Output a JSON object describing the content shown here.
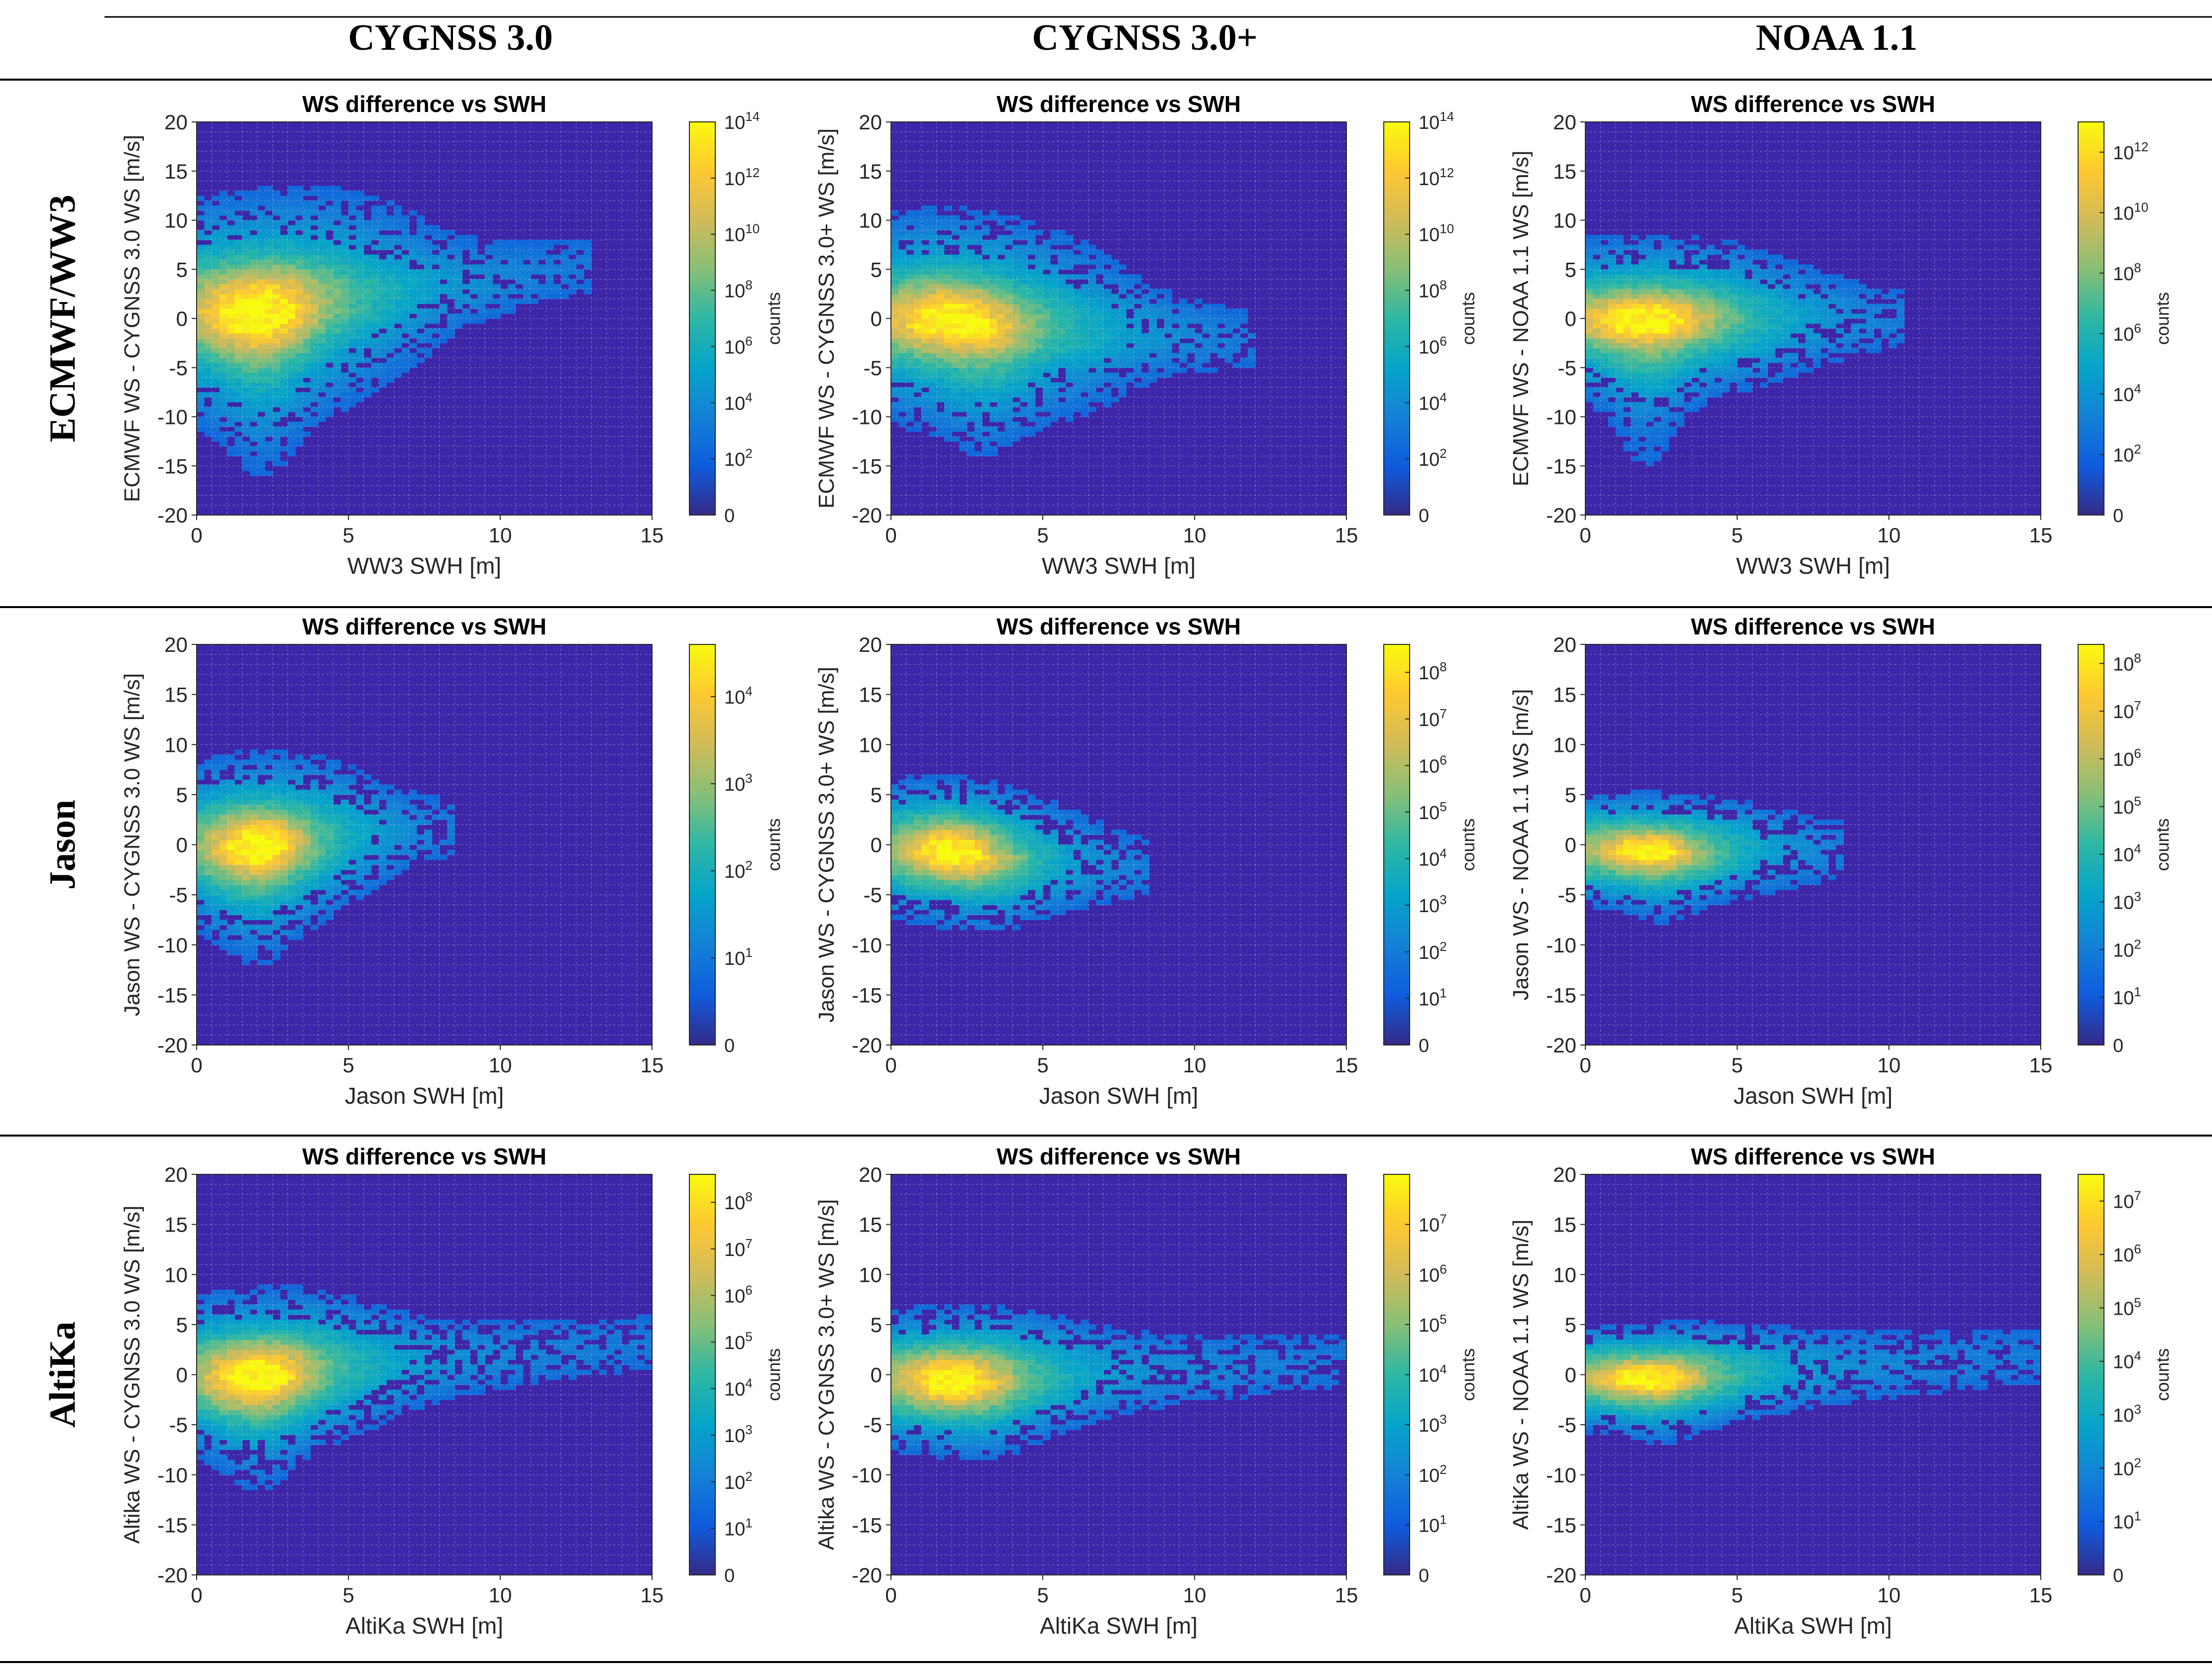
{
  "column_headers": [
    "CYGNSS 3.0",
    "CYGNSS 3.0+",
    "NOAA 1.1"
  ],
  "row_headers": [
    "ECMWF/WW3",
    "Jason",
    "AltiKa"
  ],
  "colors": {
    "rule": "#000000",
    "axes_bg": "#3e26a8",
    "grid": "#d0d0e8",
    "parula": [
      "#352a87",
      "#0f5cdd",
      "#1481d6",
      "#06a4ca",
      "#2eb7a4",
      "#87bf77",
      "#d1bb59",
      "#fec832",
      "#f9fb0e"
    ]
  },
  "chart_data": [
    {
      "type": "heatmap",
      "id": "r0c0",
      "title": "WS difference vs SWH",
      "xlabel": "WW3 SWH [m]",
      "ylabel": "ECMWF WS - CYGNSS 3.0 WS [m/s]",
      "xlim": [
        0,
        15
      ],
      "ylim": [
        -20,
        20
      ],
      "xticks": [
        "0",
        "5",
        "10",
        "15"
      ],
      "yticks": [
        "20",
        "15",
        "10",
        "5",
        "0",
        "-5",
        "-10",
        "-15",
        "-20"
      ],
      "grid": true,
      "colorbar": {
        "label": "counts",
        "zero_label": "0",
        "max_log": 14,
        "tick_exponents": [
          "2",
          "4",
          "6",
          "8",
          "10",
          "12",
          "14"
        ]
      },
      "density": {
        "peak_x": 2.0,
        "peak_y": 0.8,
        "core_sx": 1.2,
        "core_sy": 2.6,
        "spread_sx": 3.2,
        "spread_sy": 6.0,
        "tilt": 0.75,
        "extent_x": 13.0,
        "tail_y": -20,
        "tail_x": 2.2,
        "noise": 0.25
      }
    },
    {
      "type": "heatmap",
      "id": "r0c1",
      "title": "WS difference vs SWH",
      "xlabel": "WW3 SWH [m]",
      "ylabel": "ECMWF WS - CYGNSS 3.0+ WS [m/s]",
      "xlim": [
        0,
        15
      ],
      "ylim": [
        -20,
        20
      ],
      "xticks": [
        "0",
        "5",
        "10",
        "15"
      ],
      "yticks": [
        "20",
        "15",
        "10",
        "5",
        "0",
        "-5",
        "-10",
        "-15",
        "-20"
      ],
      "grid": true,
      "colorbar": {
        "label": "counts",
        "zero_label": "0",
        "max_log": 14,
        "tick_exponents": [
          "2",
          "4",
          "6",
          "8",
          "10",
          "12",
          "14"
        ]
      },
      "density": {
        "peak_x": 2.0,
        "peak_y": 0.0,
        "core_sx": 1.3,
        "core_sy": 2.0,
        "spread_sx": 3.3,
        "spread_sy": 5.5,
        "tilt": -0.4,
        "extent_x": 12.0,
        "tail_y": -15,
        "tail_x": 3.0,
        "noise": 0.25
      }
    },
    {
      "type": "heatmap",
      "id": "r0c2",
      "title": "WS difference vs SWH",
      "xlabel": "WW3 SWH [m]",
      "ylabel": "ECMWF WS - NOAA 1.1 WS [m/s]",
      "xlim": [
        0,
        15
      ],
      "ylim": [
        -20,
        20
      ],
      "xticks": [
        "0",
        "5",
        "10",
        "15"
      ],
      "yticks": [
        "20",
        "15",
        "10",
        "5",
        "0",
        "-5",
        "-10",
        "-15",
        "-20"
      ],
      "grid": true,
      "colorbar": {
        "label": "counts",
        "zero_label": "0",
        "max_log": 13,
        "tick_exponents": [
          "2",
          "4",
          "6",
          "8",
          "10",
          "12"
        ]
      },
      "density": {
        "peak_x": 2.0,
        "peak_y": 0.0,
        "core_sx": 1.3,
        "core_sy": 1.4,
        "spread_sx": 3.0,
        "spread_sy": 4.2,
        "tilt": 0.0,
        "extent_x": 10.5,
        "tail_y": -20,
        "tail_x": 2.0,
        "noise": 0.25
      }
    },
    {
      "type": "heatmap",
      "id": "r1c0",
      "title": "WS difference vs SWH",
      "xlabel": "Jason SWH [m]",
      "ylabel": "Jason WS - CYGNSS 3.0 WS [m/s]",
      "xlim": [
        0,
        15
      ],
      "ylim": [
        -20,
        20
      ],
      "xticks": [
        "0",
        "5",
        "10",
        "15"
      ],
      "yticks": [
        "20",
        "15",
        "10",
        "5",
        "0",
        "-5",
        "-10",
        "-15",
        "-20"
      ],
      "grid": true,
      "colorbar": {
        "label": "counts",
        "zero_label": "0",
        "max_log": 4.6,
        "tick_exponents": [
          "1",
          "2",
          "3",
          "4"
        ]
      },
      "density": {
        "peak_x": 2.0,
        "peak_y": 0.0,
        "core_sx": 0.9,
        "core_sy": 1.8,
        "spread_sx": 2.2,
        "spread_sy": 4.5,
        "tilt": 0.5,
        "extent_x": 8.5,
        "tail_y": -14,
        "tail_x": 2.0,
        "noise": 0.35
      }
    },
    {
      "type": "heatmap",
      "id": "r1c1",
      "title": "WS difference vs SWH",
      "xlabel": "Jason SWH [m]",
      "ylabel": "Jason WS - CYGNSS 3.0+ WS [m/s]",
      "xlim": [
        0,
        15
      ],
      "ylim": [
        -20,
        20
      ],
      "xticks": [
        "0",
        "5",
        "10",
        "15"
      ],
      "yticks": [
        "20",
        "15",
        "10",
        "5",
        "0",
        "-5",
        "-10",
        "-15",
        "-20"
      ],
      "grid": true,
      "colorbar": {
        "label": "counts",
        "zero_label": "0",
        "max_log": 8.6,
        "tick_exponents": [
          "1",
          "2",
          "3",
          "4",
          "5",
          "6",
          "7",
          "8"
        ]
      },
      "density": {
        "peak_x": 2.0,
        "peak_y": -0.5,
        "core_sx": 0.9,
        "core_sy": 1.5,
        "spread_sx": 2.3,
        "spread_sy": 3.6,
        "tilt": -0.5,
        "extent_x": 8.5,
        "tail_y": -8,
        "tail_x": 3.0,
        "noise": 0.35
      }
    },
    {
      "type": "heatmap",
      "id": "r1c2",
      "title": "WS difference vs SWH",
      "xlabel": "Jason SWH [m]",
      "ylabel": "Jason WS - NOAA 1.1 WS [m/s]",
      "xlim": [
        0,
        15
      ],
      "ylim": [
        -20,
        20
      ],
      "xticks": [
        "0",
        "5",
        "10",
        "15"
      ],
      "yticks": [
        "20",
        "15",
        "10",
        "5",
        "0",
        "-5",
        "-10",
        "-15",
        "-20"
      ],
      "grid": true,
      "colorbar": {
        "label": "counts",
        "zero_label": "0",
        "max_log": 8.4,
        "tick_exponents": [
          "1",
          "2",
          "3",
          "4",
          "5",
          "6",
          "7",
          "8"
        ]
      },
      "density": {
        "peak_x": 2.0,
        "peak_y": -0.5,
        "core_sx": 0.9,
        "core_sy": 1.0,
        "spread_sx": 2.4,
        "spread_sy": 2.6,
        "tilt": 0.0,
        "extent_x": 8.5,
        "tail_y": -9,
        "tail_x": 2.5,
        "noise": 0.35
      }
    },
    {
      "type": "heatmap",
      "id": "r2c0",
      "title": "WS difference vs SWH",
      "xlabel": "AltiKa SWH [m]",
      "ylabel": "Altika WS - CYGNSS 3.0 WS [m/s]",
      "xlim": [
        0,
        15
      ],
      "ylim": [
        -20,
        20
      ],
      "xticks": [
        "0",
        "5",
        "10",
        "15"
      ],
      "yticks": [
        "20",
        "15",
        "10",
        "5",
        "0",
        "-5",
        "-10",
        "-15",
        "-20"
      ],
      "grid": true,
      "colorbar": {
        "label": "counts",
        "zero_label": "0",
        "max_log": 8.6,
        "tick_exponents": [
          "1",
          "2",
          "3",
          "4",
          "5",
          "6",
          "7",
          "8"
        ]
      },
      "density": {
        "peak_x": 2.0,
        "peak_y": 0.0,
        "core_sx": 1.0,
        "core_sy": 1.8,
        "spread_sx": 2.5,
        "spread_sy": 4.2,
        "tilt": 0.45,
        "extent_x": 15.0,
        "tail_y": -14,
        "tail_x": 2.0,
        "noise": 0.35
      }
    },
    {
      "type": "heatmap",
      "id": "r2c1",
      "title": "WS difference vs SWH",
      "xlabel": "AltiKa SWH [m]",
      "ylabel": "Altika WS - CYGNSS 3.0+ WS [m/s]",
      "xlim": [
        0,
        15
      ],
      "ylim": [
        -20,
        20
      ],
      "xticks": [
        "0",
        "5",
        "10",
        "15"
      ],
      "yticks": [
        "20",
        "15",
        "10",
        "5",
        "0",
        "-5",
        "-10",
        "-15",
        "-20"
      ],
      "grid": true,
      "colorbar": {
        "label": "counts",
        "zero_label": "0",
        "max_log": 8.0,
        "tick_exponents": [
          "1",
          "2",
          "3",
          "4",
          "5",
          "6",
          "7"
        ]
      },
      "density": {
        "peak_x": 2.0,
        "peak_y": -0.5,
        "core_sx": 1.0,
        "core_sy": 1.5,
        "spread_sx": 2.5,
        "spread_sy": 3.6,
        "tilt": 0.25,
        "extent_x": 15.0,
        "tail_y": -8,
        "tail_x": 3.0,
        "noise": 0.35
      }
    },
    {
      "type": "heatmap",
      "id": "r2c2",
      "title": "WS difference vs SWH",
      "xlabel": "AltiKa SWH [m]",
      "ylabel": "AltiKa WS - NOAA 1.1 WS [m/s]",
      "xlim": [
        0,
        15
      ],
      "ylim": [
        -20,
        20
      ],
      "xticks": [
        "0",
        "5",
        "10",
        "15"
      ],
      "yticks": [
        "20",
        "15",
        "10",
        "5",
        "0",
        "-5",
        "-10",
        "-15",
        "-20"
      ],
      "grid": true,
      "colorbar": {
        "label": "counts",
        "zero_label": "0",
        "max_log": 7.5,
        "tick_exponents": [
          "1",
          "2",
          "3",
          "4",
          "5",
          "6",
          "7"
        ]
      },
      "density": {
        "peak_x": 2.0,
        "peak_y": -0.3,
        "core_sx": 1.0,
        "core_sy": 1.0,
        "spread_sx": 2.5,
        "spread_sy": 2.4,
        "tilt": 0.3,
        "extent_x": 15.0,
        "tail_y": -8,
        "tail_x": 2.5,
        "noise": 0.35
      }
    }
  ]
}
